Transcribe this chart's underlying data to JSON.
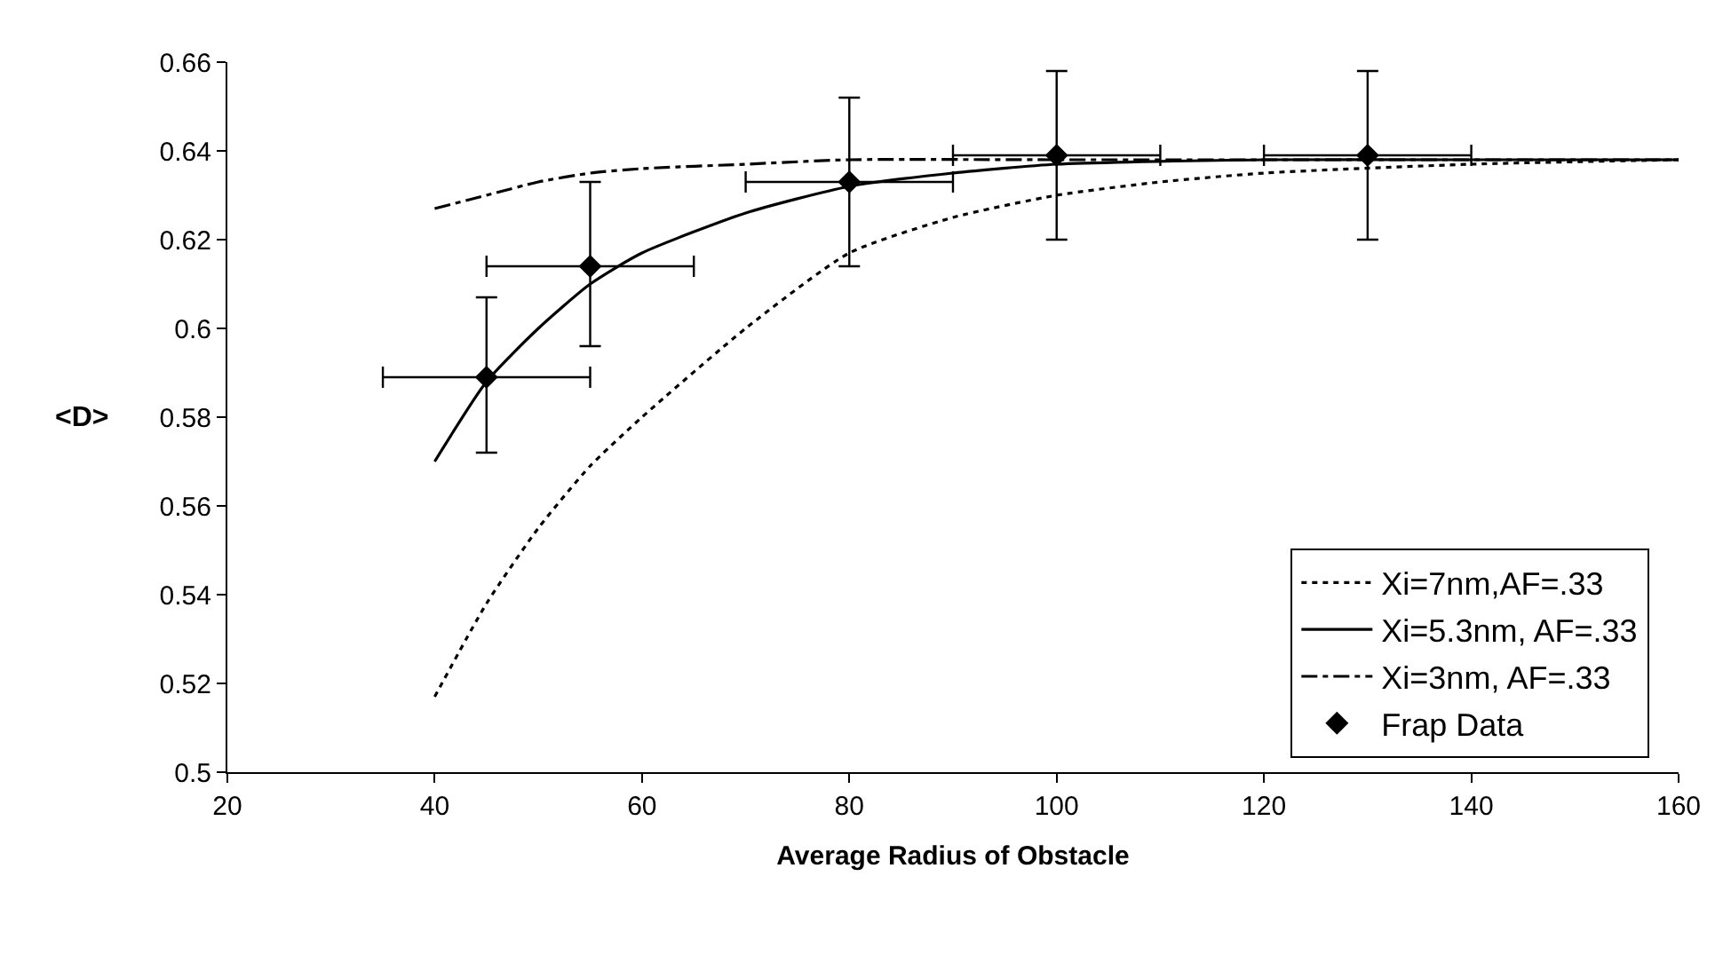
{
  "chart_data": {
    "type": "line",
    "xlabel": "Average Radius of Obstacle",
    "ylabel": "<D>",
    "xlim": [
      20,
      160
    ],
    "xticks": [
      20,
      40,
      60,
      80,
      100,
      120,
      140,
      160
    ],
    "ylim": [
      0.5,
      0.66
    ],
    "yticks": [
      0.5,
      0.52,
      0.54,
      0.56,
      0.58,
      0.6,
      0.62,
      0.64,
      0.66
    ],
    "grid": false,
    "legend": "bottom right",
    "series": [
      {
        "name": "Xi=7nm,AF=.33",
        "color": "#000000",
        "marker": "none",
        "line_style": "dotted",
        "x": [
          40,
          45,
          50,
          55,
          60,
          70,
          80,
          90,
          100,
          110,
          120,
          140,
          160
        ],
        "values": [
          0.517,
          0.538,
          0.555,
          0.569,
          0.58,
          0.6,
          0.617,
          0.625,
          0.63,
          0.633,
          0.635,
          0.637,
          0.638
        ]
      },
      {
        "name": "Xi=5.3nm, AF=.33",
        "color": "#000000",
        "marker": "none",
        "line_style": "solid",
        "x": [
          40,
          45,
          50,
          55,
          60,
          70,
          80,
          90,
          100,
          120,
          140,
          160
        ],
        "values": [
          0.57,
          0.588,
          0.6,
          0.61,
          0.617,
          0.626,
          0.632,
          0.635,
          0.637,
          0.638,
          0.638,
          0.638
        ]
      },
      {
        "name": "Xi=3nm, AF=.33",
        "color": "#000000",
        "marker": "none",
        "line_style": "dashdot",
        "x": [
          40,
          45,
          50,
          55,
          60,
          70,
          80,
          100,
          120,
          160
        ],
        "values": [
          0.627,
          0.63,
          0.633,
          0.635,
          0.636,
          0.637,
          0.638,
          0.638,
          0.638,
          0.638
        ]
      },
      {
        "name": "Frap Data",
        "color": "#000000",
        "type": "scatter",
        "marker": "diamond",
        "x": [
          45,
          55,
          80,
          100,
          130
        ],
        "values": [
          0.589,
          0.614,
          0.633,
          0.639,
          0.639
        ],
        "errors": [
          [
            0.572,
            0.607
          ],
          [
            0.596,
            0.633
          ],
          [
            0.614,
            0.652
          ],
          [
            0.62,
            0.658
          ],
          [
            0.62,
            0.658
          ]
        ],
        "xerrors": [
          [
            35,
            55
          ],
          [
            45,
            65
          ],
          [
            70,
            90
          ],
          [
            90,
            110
          ],
          [
            120,
            140
          ]
        ]
      }
    ]
  }
}
